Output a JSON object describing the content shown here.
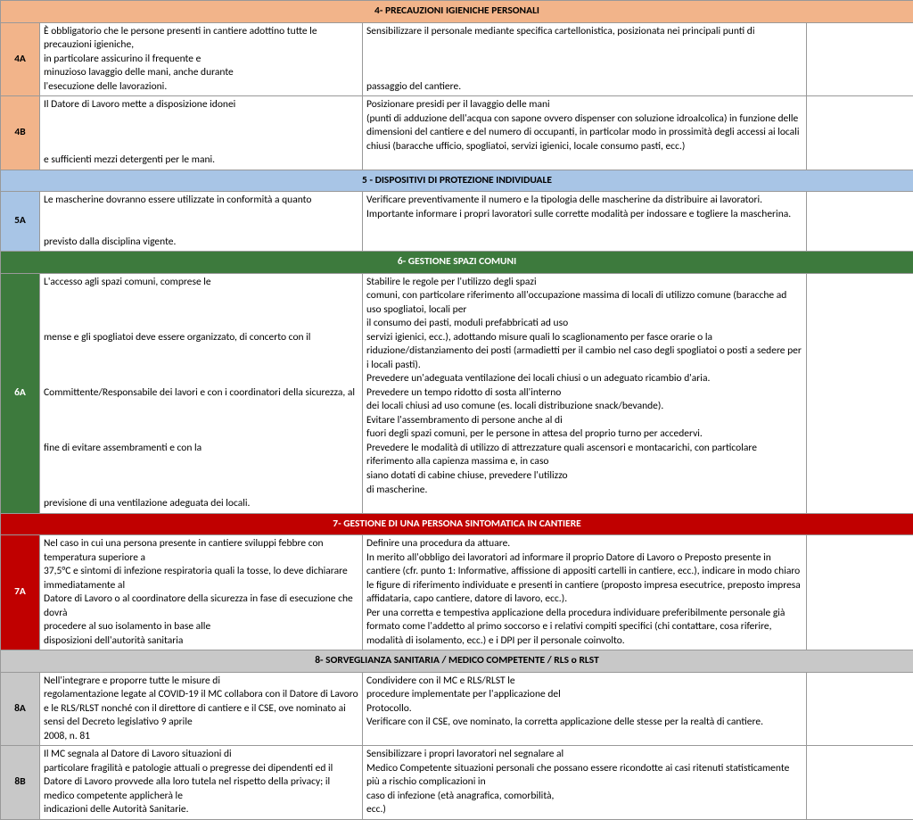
{
  "sections": [
    {
      "header": "4- PRECAUZIONI IGIENICHE PERSONALI",
      "header_bg": "#f2b48a",
      "code_bg": "#f2b48a",
      "rows": [
        {
          "code": "4A",
          "left": "È  obbligatorio  che  le  persone  presenti  in cantiere adottino tutte le precauzioni igieniche,\nin   particolare   assicurino   il   frequente  e\nminuzioso lavaggio delle mani, anche durante\nl'esecuzione delle lavorazioni.",
          "right": "Sensibilizzare il personale mediante specifica cartellonistica, posizionata nei principali punti di\n\n\n\npassaggio del cantiere."
        },
        {
          "code": "4B",
          "left": "Il Datore di Lavoro mette a disposizione idonei\n\n\n\ne sufficienti mezzi detergenti per le mani.",
          "right": "Posizionare presidi per il lavaggio delle mani\n(punti di adduzione dell'acqua con sapone ovvero dispenser con soluzione idroalcolica) in funzione delle dimensioni del cantiere e  del numero di occupanti, in particolar modo in prossimità degli accessi ai locali chiusi (baracche ufficio, spogliatoi, servizi igienici, locale consumo pasti, ecc.)"
        }
      ]
    },
    {
      "header": "5 - DISPOSITIVI DI PROTEZIONE INDIVIDUALE",
      "header_bg": "#a8c5e6",
      "code_bg": "#a8c5e6",
      "rows": [
        {
          "code": "5A",
          "left": "Le  mascherine dovranno essere utilizzate in conformità  a  quanto\n\n\nprevisto  dalla  disciplina vigente.",
          "right": "Verificare  preventivamente  il  numero  e  la  tipologia  delle  mascherine  da  distribuire  ai lavoratori.\nImportante informare i  propri lavoratori sulle corrette modalità per indossare e togliere la mascherina."
        }
      ]
    },
    {
      "header": "6- GESTIONE SPAZI COMUNI",
      "header_bg": "#3d7a3d",
      "header_fg": "#ffffff",
      "code_bg": "#3d7a3d",
      "code_fg": "#ffffff",
      "rows": [
        {
          "code": "6A",
          "left": "L'accesso  agli  spazi  comuni,  comprese  le\n\n\n\nmense e gli spogliatoi deve essere organizzato, di  concerto con  il\n\n\n\nCommittente/Responsabile dei lavori e con i coordinatori della sicurezza, al\n\n\n\nfine  di  evitare  assembramenti  e  con  la\n\n\n\nprevisione di una ventilazione adeguata dei locali.",
          "right": "Stabilire  le  regole  per  l'utilizzo  degli  spazi\ncomuni, con particolare riferimento all'occupazione massima di locali di utilizzo comune (baracche ad uso spogliatoi, locali per\nil consumo dei pasti, moduli prefabbricati ad uso\nservizi igienici, ecc.), adottando misure quali lo scaglionamento per fasce orarie o la riduzione/distanziamento dei  posti  (armadietti per il cambio nel caso degli spogliatoi o posti a sedere per i locali pasti).\nPrevedere un'adeguata ventilazione dei locali chiusi o un adeguato ricambio d'aria.\nPrevedere un tempo ridotto di sosta all'interno\ndei locali chiusi ad uso comune (es. locali distribuzione snack/bevande).\nEvitare l'assembramento di persone anche al di\nfuori degli spazi comuni, per le persone in attesa del proprio turno per accedervi.\nPrevedere le modalità di utilizzo di attrezzature quali ascensori e montacarichi, con particolare riferimento alla capienza massima e, in caso\nsiano dotati di cabine chiuse, prevedere l'utilizzo\ndi mascherine."
        }
      ]
    },
    {
      "header": "7- GESTIONE DI UNA PERSONA SINTOMATICA IN CANTIERE",
      "header_bg": "#c00000",
      "header_fg": "#ffffff",
      "code_bg": "#c00000",
      "code_fg": "#ffffff",
      "rows": [
        {
          "code": "7A",
          "left": "Nel caso in cui una persona presente in cantiere sviluppi  febbre  con temperatura  superiore  a\n37,5°C e sintomi di infezione respiratoria quali la tosse, lo deve dichiarare immediatamente al\nDatore  di  Lavoro  o  al  coordinatore  della sicurezza  in  fase  di  esecuzione  che  dovrà\nprocedere  al  suo  isolamento  in  base  alle\ndisposizioni dell'autorità sanitaria",
          "right": "Definire una procedura da attuare.\nIn merito all'obbligo dei lavoratori ad informare il proprio Datore di Lavoro o Preposto presente in cantiere (cfr. punto 1: Informative, affissione di appositi cartelli in cantiere, ecc.), indicare in modo chiaro le figure di riferimento individuate e presenti in cantiere (proposto impresa esecutrice, preposto impresa affidataria, capo cantiere, datore di lavoro, ecc.).\nPer una corretta e tempestiva applicazione della procedura  individuare  preferibilmente personale già formato come l'addetto al primo soccorso e i relativi compiti specifici (chi contattare, cosa riferire, modalità di isolamento, ecc.) e i DPI per il personale coinvolto."
        }
      ]
    },
    {
      "header": "8- SORVEGLIANZA SANITARIA / MEDICO COMPETENTE / RLS o RLST",
      "header_bg": "#c8c8c8",
      "code_bg": "#c8c8c8",
      "rows": [
        {
          "code": "8A",
          "left": "Nell'integrare  e  proporre  tutte  le  misure  di\nregolamentazione legate  al  COVID-19 il  MC collabora con il Datore di Lavoro e le RLS/RLST nonché con il direttore di cantiere e il CSE, ove nominato ai sensi del Decreto legislativo 9 aprile\n2008, n. 81",
          "right": "Condividere   con   il   MC   e   RLS/RLST   le\nprocedure implementate per l'applicazione del\nProtocollo.\nVerificare con il CSE, ove nominato, la corretta applicazione delle stesse per la realtà di cantiere."
        },
        {
          "code": "8B",
          "left": "Il MC segnala al Datore di Lavoro situazioni di\nparticolare fragilità e patologie attuali o pregresse dei dipendenti ed il Datore di Lavoro provvede  alla  loro  tutela  nel  rispetto  della  privacy;  il  medico  competente  applicherà  le\nindicazioni delle Autorità Sanitarie.",
          "right": "Sensibilizzare i propri lavoratori nel segnalare al\nMedico Competente situazioni personali che possano essere ricondotte ai casi ritenuti statisticamente più a rischio complicazioni in\ncaso di infezione (età anagrafica, comorbilità,\necc.)"
        }
      ]
    }
  ]
}
